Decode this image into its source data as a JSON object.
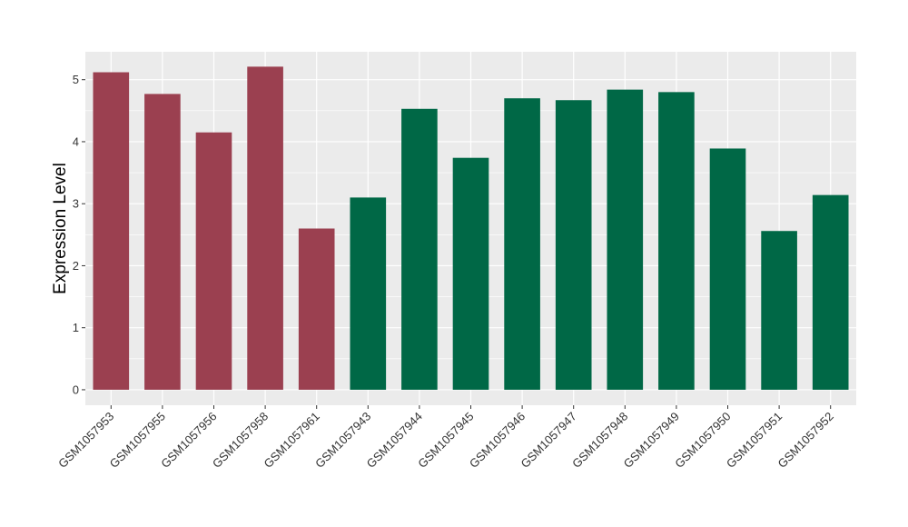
{
  "chart_data": {
    "type": "bar",
    "title": "",
    "xlabel": "",
    "ylabel": "Expression Level",
    "ylim": [
      -0.25,
      5.45
    ],
    "yticks": [
      0,
      1,
      2,
      3,
      4,
      5
    ],
    "grid": true,
    "legend": "none",
    "categories": [
      "GSM1057953",
      "GSM1057955",
      "GSM1057956",
      "GSM1057958",
      "GSM1057961",
      "GSM1057943",
      "GSM1057944",
      "GSM1057945",
      "GSM1057946",
      "GSM1057947",
      "GSM1057948",
      "GSM1057949",
      "GSM1057950",
      "GSM1057951",
      "GSM1057952"
    ],
    "values": [
      5.12,
      4.77,
      4.15,
      5.21,
      2.6,
      3.1,
      4.53,
      3.74,
      4.7,
      4.67,
      4.84,
      4.8,
      3.89,
      2.56,
      3.14
    ],
    "groups": [
      1,
      1,
      1,
      1,
      1,
      2,
      2,
      2,
      2,
      2,
      2,
      2,
      2,
      2,
      2
    ],
    "colors": {
      "group1": "#9B4050",
      "group2": "#006846",
      "panel": "#EBEBEB",
      "grid": "#FFFFFF"
    }
  }
}
